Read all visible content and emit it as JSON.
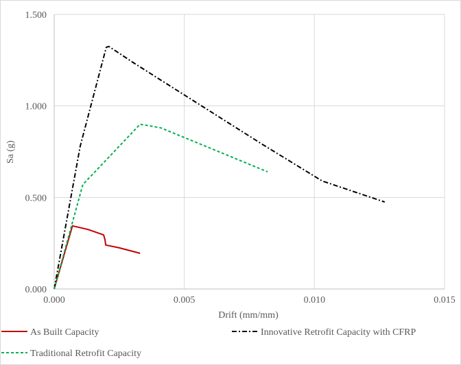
{
  "chart_data": {
    "type": "line",
    "title": "",
    "xlabel": "Drift (mm/mm)",
    "ylabel": "Sa (g)",
    "xlim": [
      0,
      0.015
    ],
    "ylim": [
      0,
      1.5
    ],
    "x_ticks": [
      "0.000",
      "0.005",
      "0.010",
      "0.015"
    ],
    "y_ticks": [
      "0.000",
      "0.500",
      "1.000",
      "1.500"
    ],
    "grid": true,
    "legend_position": "bottom",
    "series": [
      {
        "name": "As Built Capacity",
        "color": "#c00000",
        "dash": "solid",
        "x": [
          0,
          0.0007,
          0.0013,
          0.0019,
          0.00195,
          0.00198,
          0.0025,
          0.0033
        ],
        "y": [
          0,
          0.345,
          0.325,
          0.295,
          0.27,
          0.24,
          0.225,
          0.195
        ]
      },
      {
        "name": "Innovative Retrofit Capacity with CFRP",
        "color": "#000000",
        "dash": "dashdot",
        "x": [
          0,
          0.001,
          0.002,
          0.0021,
          0.003,
          0.004,
          0.006,
          0.008,
          0.0103,
          0.0127
        ],
        "y": [
          0,
          0.78,
          1.32,
          1.325,
          1.24,
          1.15,
          0.97,
          0.79,
          0.59,
          0.475
        ]
      },
      {
        "name": "Traditional Retrofit Capacity",
        "color": "#00b050",
        "dash": "dashed",
        "x": [
          0,
          0.0011,
          0.0033,
          0.0041,
          0.0082
        ],
        "y": [
          0,
          0.57,
          0.9,
          0.88,
          0.64
        ]
      }
    ]
  }
}
